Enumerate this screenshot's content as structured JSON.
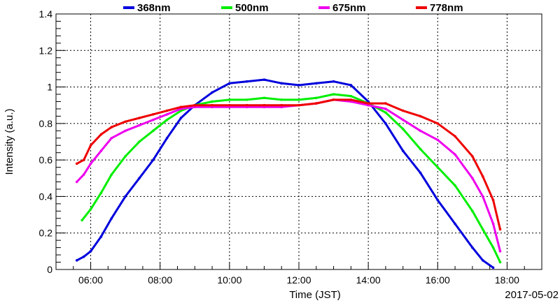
{
  "chart_data": {
    "type": "line",
    "title": "",
    "xlabel": "Time (JST)",
    "ylabel": "Intensity (a.u.)",
    "date_label": "2017-05-02",
    "x_unit": "hours (JST)",
    "xlim": [
      5.0,
      19.0
    ],
    "ylim": [
      0,
      1.4
    ],
    "x_ticks": [
      {
        "value": 6,
        "label": "06:00"
      },
      {
        "value": 8,
        "label": "08:00"
      },
      {
        "value": 10,
        "label": "10:00"
      },
      {
        "value": 12,
        "label": "12:00"
      },
      {
        "value": 14,
        "label": "14:00"
      },
      {
        "value": 16,
        "label": "16:00"
      },
      {
        "value": 18,
        "label": "18:00"
      }
    ],
    "y_ticks": [
      {
        "value": 0,
        "label": "0"
      },
      {
        "value": 0.2,
        "label": "0.2"
      },
      {
        "value": 0.4,
        "label": "0.4"
      },
      {
        "value": 0.6,
        "label": "0.6"
      },
      {
        "value": 0.8,
        "label": "0.8"
      },
      {
        "value": 1.0,
        "label": "1"
      },
      {
        "value": 1.2,
        "label": "1.2"
      },
      {
        "value": 1.4,
        "label": "1.4"
      }
    ],
    "grid": true,
    "legend_position": "top",
    "series": [
      {
        "name": "368nm",
        "color": "#0000dd",
        "x": [
          5.6,
          5.8,
          6.0,
          6.3,
          6.6,
          7.0,
          7.4,
          7.8,
          8.2,
          8.6,
          9.0,
          9.5,
          10.0,
          10.5,
          11.0,
          11.5,
          12.0,
          12.5,
          13.0,
          13.5,
          14.0,
          14.5,
          15.0,
          15.5,
          16.0,
          16.5,
          17.0,
          17.3,
          17.6
        ],
        "y": [
          0.05,
          0.07,
          0.1,
          0.18,
          0.28,
          0.4,
          0.5,
          0.6,
          0.72,
          0.83,
          0.9,
          0.97,
          1.02,
          1.03,
          1.04,
          1.02,
          1.01,
          1.02,
          1.03,
          1.01,
          0.92,
          0.8,
          0.65,
          0.53,
          0.38,
          0.25,
          0.12,
          0.05,
          0.01
        ]
      },
      {
        "name": "500nm",
        "color": "#00ee00",
        "x": [
          5.75,
          6.0,
          6.3,
          6.6,
          7.0,
          7.4,
          7.8,
          8.2,
          8.6,
          9.0,
          9.5,
          10.0,
          10.5,
          11.0,
          11.5,
          12.0,
          12.5,
          13.0,
          13.5,
          14.0,
          14.5,
          15.0,
          15.5,
          16.0,
          16.5,
          17.0,
          17.3,
          17.6,
          17.8
        ],
        "y": [
          0.27,
          0.33,
          0.42,
          0.52,
          0.62,
          0.7,
          0.76,
          0.82,
          0.87,
          0.9,
          0.92,
          0.93,
          0.93,
          0.94,
          0.93,
          0.93,
          0.94,
          0.96,
          0.95,
          0.91,
          0.86,
          0.77,
          0.66,
          0.56,
          0.46,
          0.32,
          0.22,
          0.12,
          0.04
        ]
      },
      {
        "name": "675nm",
        "color": "#ee00ee",
        "x": [
          5.6,
          5.8,
          6.0,
          6.3,
          6.6,
          7.0,
          7.4,
          7.8,
          8.2,
          8.6,
          9.0,
          9.5,
          10.0,
          10.5,
          11.0,
          11.5,
          12.0,
          12.5,
          13.0,
          13.5,
          14.0,
          14.5,
          15.0,
          15.5,
          16.0,
          16.5,
          17.0,
          17.3,
          17.6,
          17.8
        ],
        "y": [
          0.48,
          0.52,
          0.58,
          0.65,
          0.72,
          0.76,
          0.79,
          0.82,
          0.85,
          0.88,
          0.89,
          0.89,
          0.89,
          0.89,
          0.89,
          0.89,
          0.9,
          0.91,
          0.93,
          0.92,
          0.9,
          0.88,
          0.82,
          0.76,
          0.71,
          0.63,
          0.5,
          0.4,
          0.25,
          0.1
        ]
      },
      {
        "name": "778nm",
        "color": "#ee0000",
        "x": [
          5.6,
          5.8,
          6.0,
          6.3,
          6.6,
          7.0,
          7.4,
          7.8,
          8.2,
          8.6,
          9.0,
          9.5,
          10.0,
          10.5,
          11.0,
          11.5,
          12.0,
          12.5,
          13.0,
          13.5,
          14.0,
          14.5,
          15.0,
          15.5,
          16.0,
          16.5,
          17.0,
          17.3,
          17.6,
          17.8
        ],
        "y": [
          0.58,
          0.6,
          0.68,
          0.74,
          0.78,
          0.81,
          0.83,
          0.85,
          0.87,
          0.89,
          0.9,
          0.9,
          0.9,
          0.9,
          0.9,
          0.9,
          0.9,
          0.91,
          0.93,
          0.93,
          0.91,
          0.91,
          0.87,
          0.84,
          0.8,
          0.73,
          0.62,
          0.51,
          0.38,
          0.22
        ]
      }
    ]
  }
}
